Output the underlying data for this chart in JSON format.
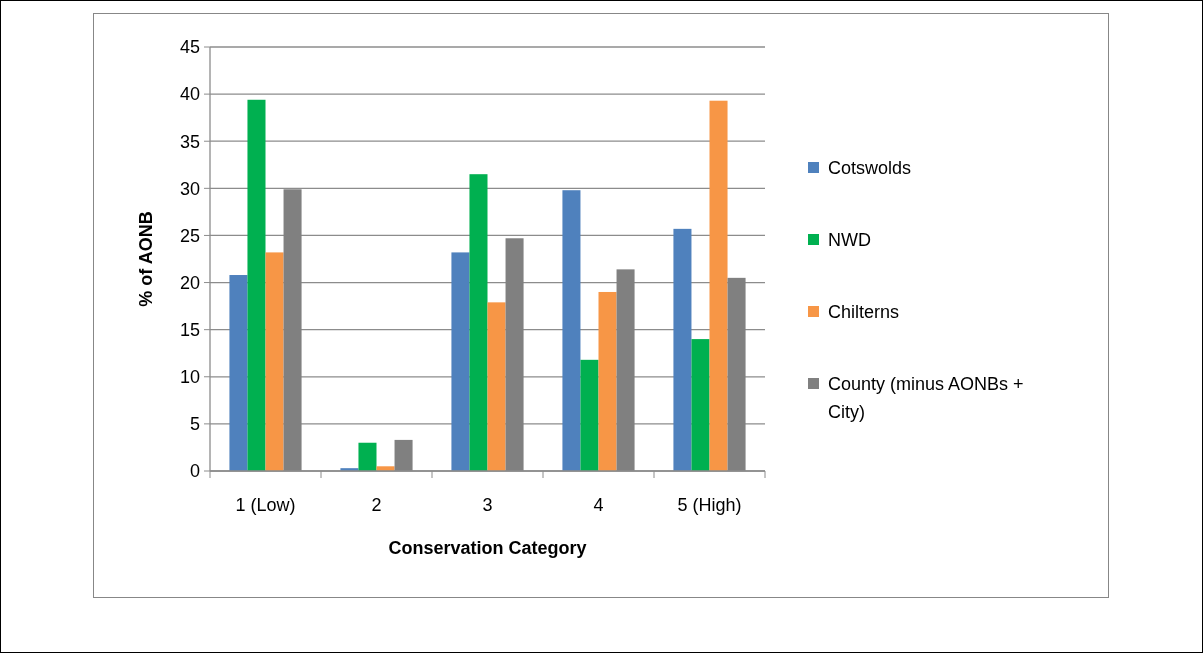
{
  "chart_data": {
    "type": "bar",
    "xlabel": "Conservation Category",
    "ylabel": "% of AONB",
    "categories": [
      "1 (Low)",
      "2",
      "3",
      "4",
      "5 (High)"
    ],
    "series": [
      {
        "name": "Cotswolds",
        "color": "#4f81bd",
        "values": [
          20.8,
          0.3,
          23.2,
          29.8,
          25.7
        ]
      },
      {
        "name": "NWD",
        "color": "#00b050",
        "values": [
          39.4,
          3.0,
          31.5,
          11.8,
          14.0
        ]
      },
      {
        "name": "Chilterns",
        "color": "#f79646",
        "values": [
          23.2,
          0.5,
          17.9,
          19.0,
          39.3
        ]
      },
      {
        "name": "County (minus AONBs + City)",
        "color": "#808080",
        "values": [
          29.9,
          3.3,
          24.7,
          21.4,
          20.5
        ]
      }
    ],
    "ylim": [
      0,
      45
    ],
    "yticks": [
      0,
      5,
      10,
      15,
      20,
      25,
      30,
      35,
      40,
      45
    ],
    "grid": "y",
    "legend": "right"
  }
}
